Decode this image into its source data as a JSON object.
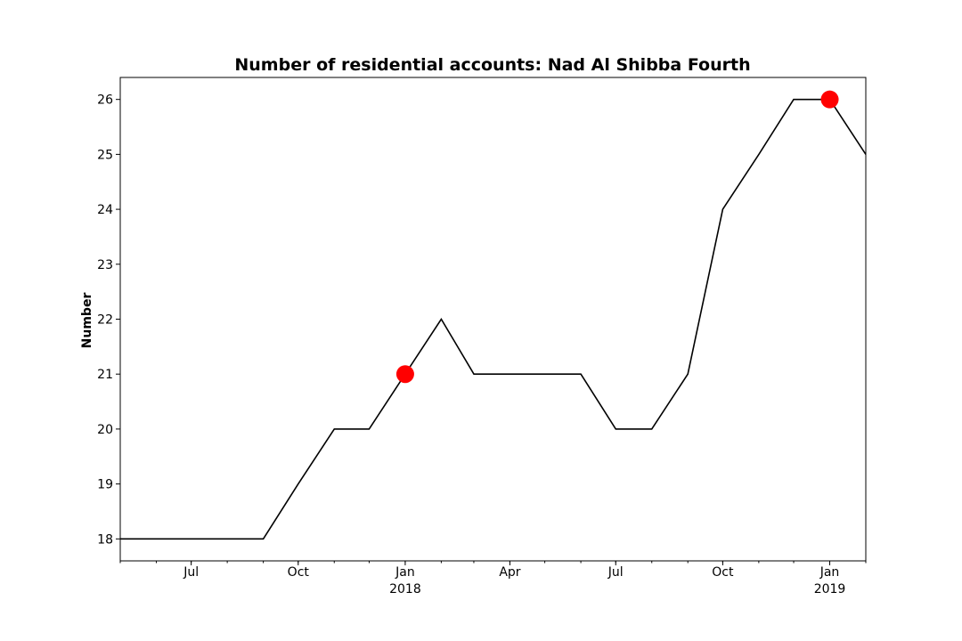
{
  "chart_data": {
    "type": "line",
    "title": "Number of residential accounts: Nad Al Shibba Fourth",
    "xlabel": "",
    "ylabel": "Number",
    "xlim": [
      "2017-05-01",
      "2019-02-01"
    ],
    "ylim": [
      17.6,
      26.4
    ],
    "yticks": [
      18,
      19,
      20,
      21,
      22,
      23,
      24,
      25,
      26
    ],
    "xticks": [
      {
        "date": "2017-07-01",
        "label": "Jul",
        "sublabel": ""
      },
      {
        "date": "2017-10-01",
        "label": "Oct",
        "sublabel": ""
      },
      {
        "date": "2018-01-01",
        "label": "Jan",
        "sublabel": "2018"
      },
      {
        "date": "2018-04-01",
        "label": "Apr",
        "sublabel": ""
      },
      {
        "date": "2018-07-01",
        "label": "Jul",
        "sublabel": ""
      },
      {
        "date": "2018-10-01",
        "label": "Oct",
        "sublabel": ""
      },
      {
        "date": "2019-01-01",
        "label": "Jan",
        "sublabel": "2019"
      }
    ],
    "grid": false,
    "series": [
      {
        "color": "#000000",
        "x": [
          "2017-05-01",
          "2017-06-01",
          "2017-07-01",
          "2017-08-01",
          "2017-09-01",
          "2017-10-01",
          "2017-11-01",
          "2017-12-01",
          "2018-01-01",
          "2018-02-01",
          "2018-03-01",
          "2018-04-01",
          "2018-05-01",
          "2018-06-01",
          "2018-07-01",
          "2018-08-01",
          "2018-09-01",
          "2018-10-01",
          "2018-11-01",
          "2018-12-01",
          "2019-01-01",
          "2019-02-01"
        ],
        "y": [
          18,
          18,
          18,
          18,
          18,
          19,
          20,
          20,
          21,
          22,
          21,
          21,
          21,
          21,
          20,
          20,
          21,
          24,
          25,
          26,
          26,
          25
        ]
      }
    ],
    "highlights": [
      {
        "x": "2018-01-01",
        "y": 21,
        "color": "#ff0000"
      },
      {
        "x": "2019-01-01",
        "y": 26,
        "color": "#ff0000"
      }
    ]
  }
}
